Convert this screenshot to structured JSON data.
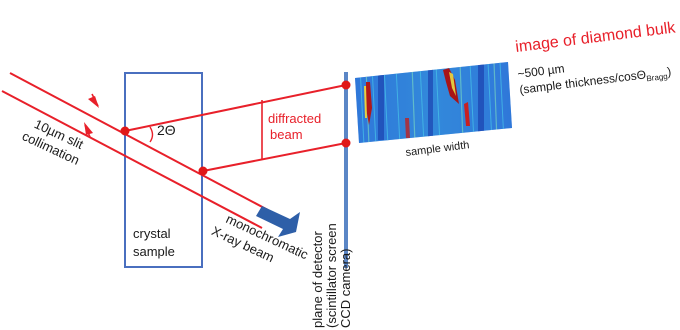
{
  "labels": {
    "slit": [
      "10µm slit",
      "collimation"
    ],
    "angle": "2Θ",
    "diffracted": [
      "diffracted",
      "beam"
    ],
    "crystal": [
      "crystal",
      "sample"
    ],
    "mono": [
      "monochromatic",
      "X-ray beam"
    ],
    "detector": [
      "plane of detector",
      "(scintillator screen",
      "CCD camera)"
    ],
    "image_title": "image of diamond bulk",
    "thickness_main": "~500 µm",
    "thickness_sub_pre": "(sample thickness/cos",
    "thickness_theta": "Θ",
    "thickness_sub": "Bragg",
    "thickness_close": ")",
    "width": "sample width"
  },
  "colors": {
    "beam_red": "#e8202a",
    "box_blue": "#4a6fbf",
    "detector_blue": "#5b86c6",
    "arrow_blue": "#2e5fa8",
    "label_red": "#e8202a",
    "text_dark": "#1a1a1a",
    "dot_red": "#e01818"
  }
}
